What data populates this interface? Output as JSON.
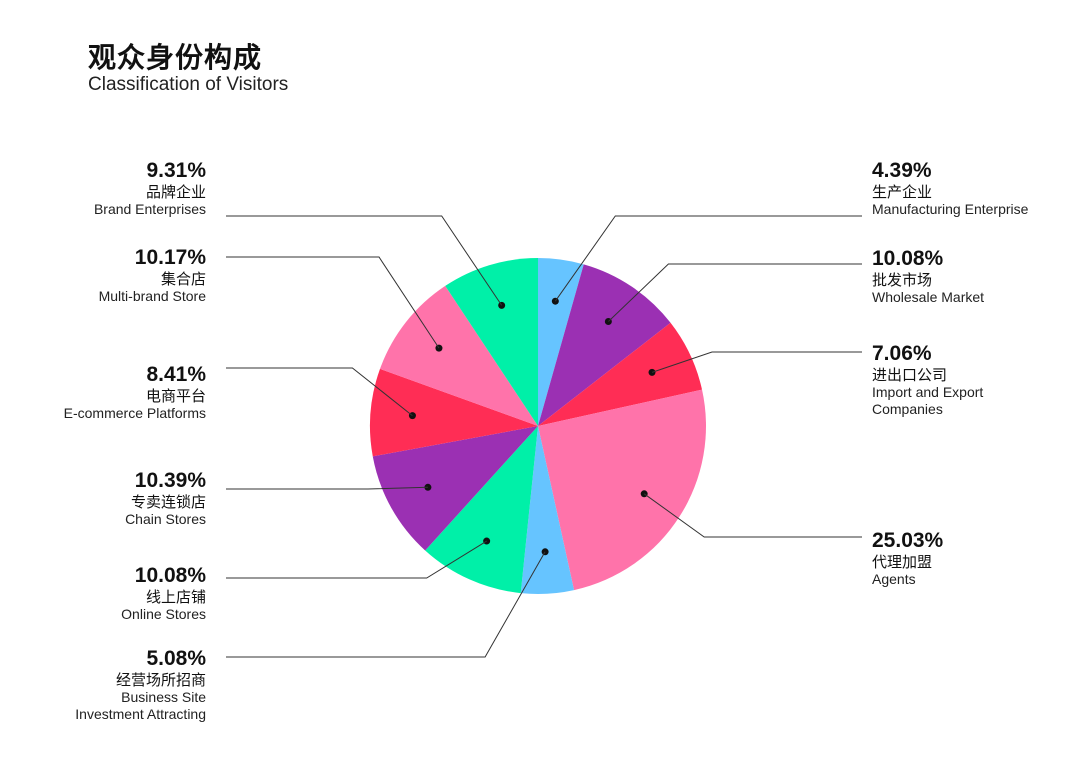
{
  "title": "观众身份构成",
  "subtitle": "Classification of Visitors",
  "chart_data": {
    "type": "pie",
    "title": "观众身份构成",
    "subtitle": "Classification of Visitors",
    "slices": [
      {
        "pct": "4.39%",
        "value": 4.39,
        "zh": "生产企业",
        "en": [
          "Manufacturing Enterprise"
        ],
        "color": "#66c4ff"
      },
      {
        "pct": "10.08%",
        "value": 10.08,
        "zh": "批发市场",
        "en": [
          "Wholesale Market"
        ],
        "color": "#9b30b3"
      },
      {
        "pct": "7.06%",
        "value": 7.06,
        "zh": "进出口公司",
        "en": [
          "Import and Export",
          "Companies"
        ],
        "color": "#ff2d55"
      },
      {
        "pct": "25.03%",
        "value": 25.03,
        "zh": "代理加盟",
        "en": [
          "Agents"
        ],
        "color": "#ff73aa"
      },
      {
        "pct": "5.08%",
        "value": 5.08,
        "zh": "经营场所招商",
        "en": [
          "Business Site",
          "Investment Attracting"
        ],
        "color": "#66c4ff"
      },
      {
        "pct": "10.08%",
        "value": 10.08,
        "zh": "线上店铺",
        "en": [
          "Online Stores"
        ],
        "color": "#00f0a8"
      },
      {
        "pct": "10.39%",
        "value": 10.39,
        "zh": "专卖连锁店",
        "en": [
          "Chain Stores"
        ],
        "color": "#9b30b3"
      },
      {
        "pct": "8.41%",
        "value": 8.41,
        "zh": "电商平台",
        "en": [
          "E-commerce Platforms"
        ],
        "color": "#ff2d55"
      },
      {
        "pct": "10.17%",
        "value": 10.17,
        "zh": "集合店",
        "en": [
          "Multi-brand Store"
        ],
        "color": "#ff73aa"
      },
      {
        "pct": "9.31%",
        "value": 9.31,
        "zh": "品牌企业",
        "en": [
          "Brand Enterprises"
        ],
        "color": "#00f0a8"
      }
    ]
  }
}
